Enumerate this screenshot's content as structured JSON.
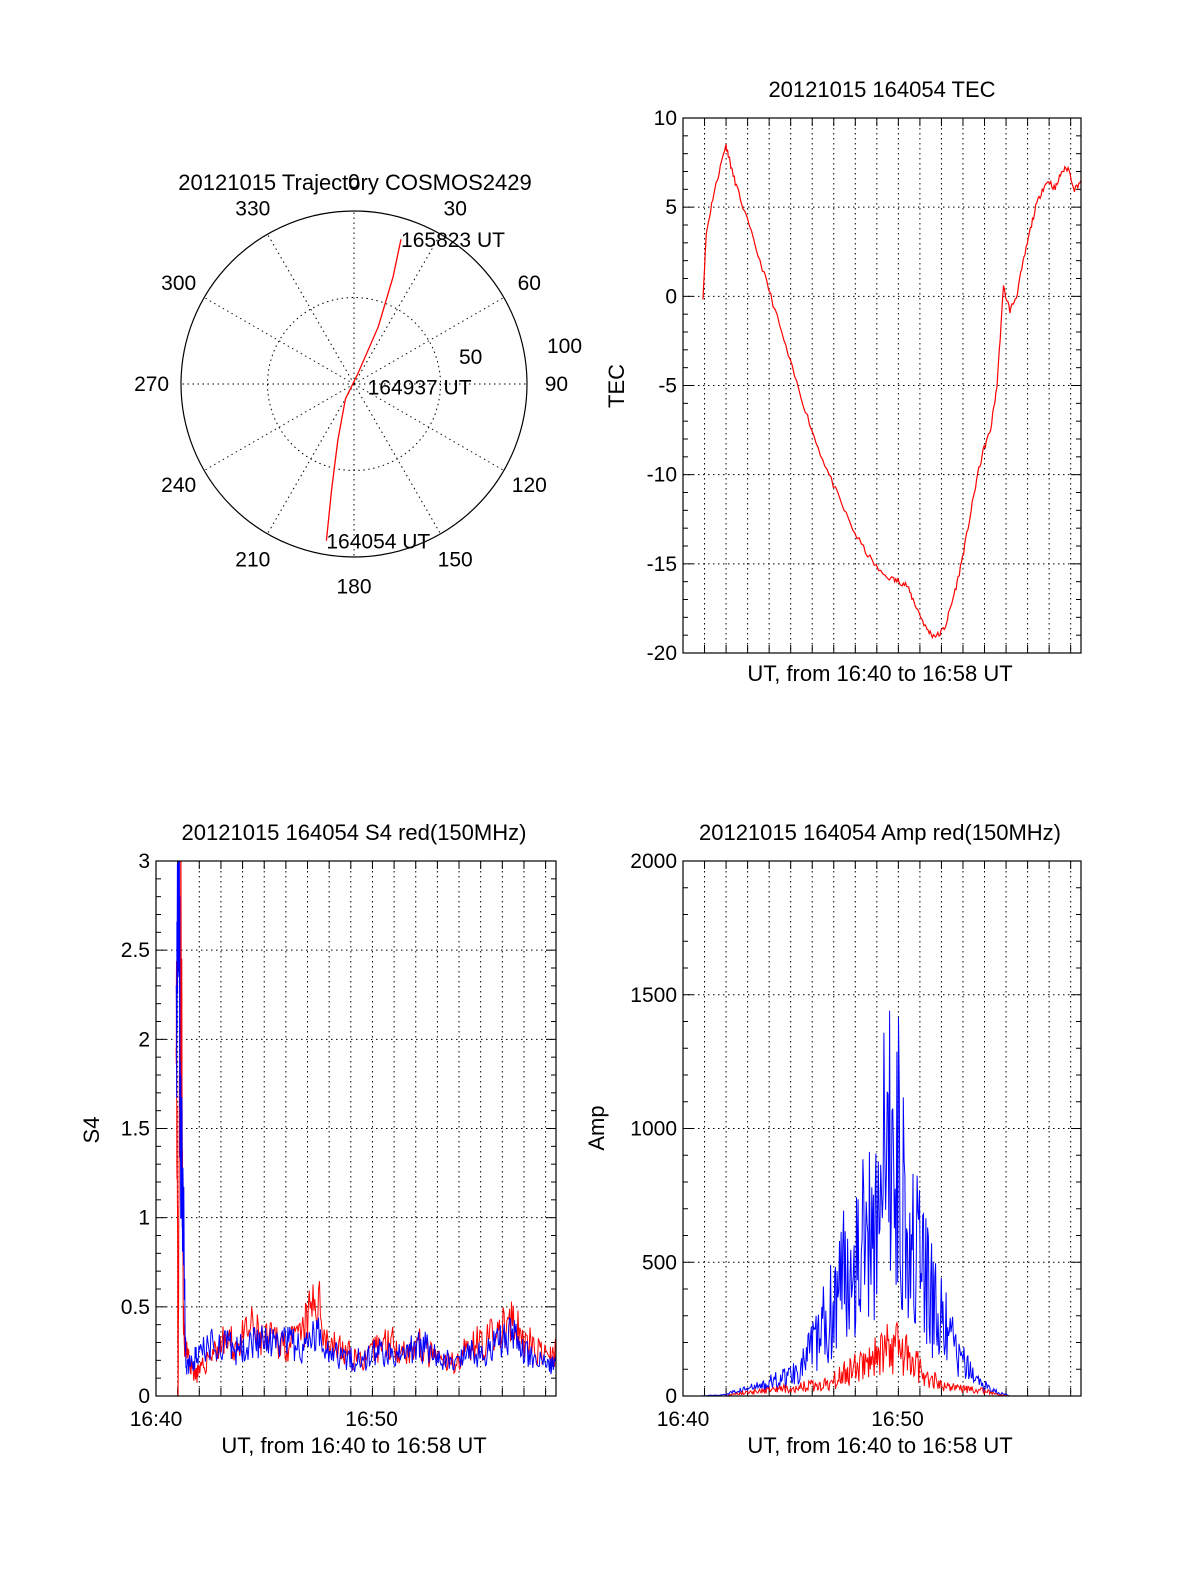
{
  "colors": {
    "red": "#ff0000",
    "blue": "#0000ff",
    "axis": "#000000",
    "background": "#ffffff"
  },
  "chart_data": [
    {
      "id": "trajectory",
      "type": "polar",
      "title": "20121015 Trajectory COSMOS2429",
      "azimuth_labels": [
        "0",
        "30",
        "60",
        "90",
        "120",
        "150",
        "180",
        "210",
        "240",
        "270",
        "300",
        "330"
      ],
      "radial_labels": [
        "50",
        "100"
      ],
      "grid": true,
      "series": [
        {
          "color": "red",
          "points": [
            {
              "az": 190,
              "zen": 92
            },
            {
              "az": 192,
              "zen": 62
            },
            {
              "az": 196,
              "zen": 34
            },
            {
              "az": 210,
              "zen": 10
            },
            {
              "az": 20,
              "zen": 6
            },
            {
              "az": 23,
              "zen": 36
            },
            {
              "az": 20,
              "zen": 66
            },
            {
              "az": 18,
              "zen": 88
            }
          ]
        }
      ],
      "annotations": [
        {
          "text": "165823 UT",
          "az": 18,
          "zen": 88
        },
        {
          "text": "164937 UT",
          "az": 100,
          "zen": 8
        },
        {
          "text": "164054 UT",
          "az": 190,
          "zen": 92
        }
      ]
    },
    {
      "id": "tec",
      "type": "line",
      "title": "20121015 164054 TEC",
      "xlabel": "UT, from 16:40 to 16:58 UT",
      "ylabel": "TEC",
      "xlim": [
        16.667,
        16.975
      ],
      "ylim": [
        -20,
        10
      ],
      "yticks": [
        10,
        5,
        0,
        -5,
        -10,
        -15,
        -20
      ],
      "xticks": [],
      "grid": true,
      "series": [
        {
          "color": "red",
          "x": [
            16.6825,
            16.685,
            16.69,
            16.695,
            16.7,
            16.702,
            16.705,
            16.71,
            16.72,
            16.73,
            16.74,
            16.75,
            16.76,
            16.77,
            16.78,
            16.79,
            16.8,
            16.81,
            16.82,
            16.83,
            16.835,
            16.84,
            16.845,
            16.85,
            16.855,
            16.86,
            16.865,
            16.87,
            16.875,
            16.88,
            16.885,
            16.89,
            16.895,
            16.9,
            16.905,
            16.91,
            16.915,
            16.92,
            16.925,
            16.93,
            16.935,
            16.94,
            16.945,
            16.95,
            16.955,
            16.96,
            16.965,
            16.97,
            16.975
          ],
          "y": [
            0,
            3.5,
            5.5,
            7,
            8.5,
            8,
            7,
            5.8,
            3.5,
            1.2,
            -1.2,
            -3.7,
            -6,
            -8.2,
            -10,
            -11.7,
            -13.3,
            -14.5,
            -15.5,
            -15.9,
            -16,
            -16.2,
            -17,
            -17.8,
            -18.6,
            -19,
            -19,
            -18.5,
            -17.2,
            -15.8,
            -14,
            -12,
            -10,
            -8.5,
            -7.5,
            -5,
            0.5,
            -0.8,
            0,
            1.8,
            3.5,
            5,
            6,
            6.5,
            6,
            7,
            7.2,
            6,
            6.5
          ]
        }
      ]
    },
    {
      "id": "s4",
      "type": "line",
      "title": "20121015 164054 S4 red(150MHz)",
      "xlabel": "UT, from 16:40 to 16:58 UT",
      "ylabel": "S4",
      "xlim": [
        16.667,
        16.975
      ],
      "ylim": [
        0,
        3
      ],
      "yticks": [
        0,
        0.5,
        1,
        1.5,
        2,
        2.5,
        3
      ],
      "xticks": [
        {
          "value": 16.667,
          "label": "16:40"
        },
        {
          "value": 16.833,
          "label": "16:50"
        }
      ],
      "grid": true,
      "series": [
        {
          "color": "red",
          "x": [
            16.6825,
            16.684,
            16.686,
            16.688,
            16.69,
            16.695,
            16.7,
            16.71,
            16.72,
            16.73,
            16.74,
            16.75,
            16.76,
            16.77,
            16.78,
            16.79,
            16.8,
            16.81,
            16.82,
            16.83,
            16.84,
            16.85,
            16.86,
            16.87,
            16.88,
            16.89,
            16.9,
            16.91,
            16.92,
            16.93,
            16.94,
            16.95,
            16.96,
            16.97,
            16.975
          ],
          "y": [
            3,
            0,
            3,
            0.4,
            0.25,
            0.15,
            0.12,
            0.25,
            0.3,
            0.28,
            0.38,
            0.3,
            0.32,
            0.28,
            0.35,
            0.55,
            0.3,
            0.25,
            0.22,
            0.2,
            0.3,
            0.3,
            0.25,
            0.28,
            0.22,
            0.18,
            0.2,
            0.3,
            0.3,
            0.35,
            0.4,
            0.32,
            0.25,
            0.2,
            0.25
          ]
        },
        {
          "color": "blue",
          "x": [
            16.6825,
            16.6845,
            16.686,
            16.688,
            16.69,
            16.695,
            16.7,
            16.71,
            16.72,
            16.73,
            16.74,
            16.75,
            16.76,
            16.77,
            16.78,
            16.79,
            16.8,
            16.81,
            16.82,
            16.83,
            16.84,
            16.85,
            16.86,
            16.87,
            16.88,
            16.89,
            16.9,
            16.91,
            16.92,
            16.93,
            16.94,
            16.95,
            16.96,
            16.97,
            16.975
          ],
          "y": [
            1.8,
            3,
            1.5,
            1.1,
            0.15,
            0.2,
            0.22,
            0.3,
            0.28,
            0.25,
            0.32,
            0.3,
            0.28,
            0.3,
            0.25,
            0.35,
            0.28,
            0.22,
            0.2,
            0.22,
            0.25,
            0.22,
            0.24,
            0.28,
            0.25,
            0.2,
            0.18,
            0.25,
            0.22,
            0.3,
            0.35,
            0.25,
            0.2,
            0.18,
            0.2
          ]
        }
      ]
    },
    {
      "id": "amp",
      "type": "line",
      "title": "20121015 164054 Amp red(150MHz)",
      "xlabel": "UT, from 16:40 to 16:58 UT",
      "ylabel": "Amp",
      "xlim": [
        16.667,
        16.975
      ],
      "ylim": [
        0,
        2000
      ],
      "yticks": [
        0,
        500,
        1000,
        1500,
        2000
      ],
      "xticks": [
        {
          "value": 16.667,
          "label": "16:40"
        },
        {
          "value": 16.833,
          "label": "16:50"
        }
      ],
      "grid": true,
      "series": [
        {
          "color": "blue",
          "x": [
            16.667,
            16.68,
            16.7,
            16.71,
            16.72,
            16.73,
            16.74,
            16.75,
            16.76,
            16.77,
            16.78,
            16.79,
            16.8,
            16.81,
            16.82,
            16.83,
            16.84,
            16.85,
            16.86,
            16.87,
            16.88,
            16.89,
            16.9,
            16.91,
            16.92,
            16.93,
            16.94,
            16.95,
            16.975
          ],
          "y": [
            0,
            0,
            5,
            20,
            30,
            40,
            60,
            80,
            120,
            200,
            300,
            450,
            550,
            600,
            800,
            1000,
            700,
            500,
            350,
            250,
            150,
            80,
            40,
            15,
            0,
            0,
            0,
            0,
            0
          ]
        },
        {
          "color": "red",
          "x": [
            16.667,
            16.68,
            16.7,
            16.71,
            16.72,
            16.73,
            16.74,
            16.75,
            16.76,
            16.77,
            16.78,
            16.79,
            16.8,
            16.81,
            16.82,
            16.83,
            16.84,
            16.85,
            16.86,
            16.87,
            16.88,
            16.89,
            16.9,
            16.91,
            16.92,
            16.93,
            16.94,
            16.95,
            16.975
          ],
          "y": [
            0,
            0,
            0,
            10,
            15,
            20,
            25,
            30,
            35,
            40,
            50,
            80,
            100,
            130,
            150,
            200,
            150,
            100,
            60,
            40,
            30,
            25,
            20,
            5,
            0,
            0,
            0,
            0,
            0
          ]
        }
      ]
    }
  ]
}
